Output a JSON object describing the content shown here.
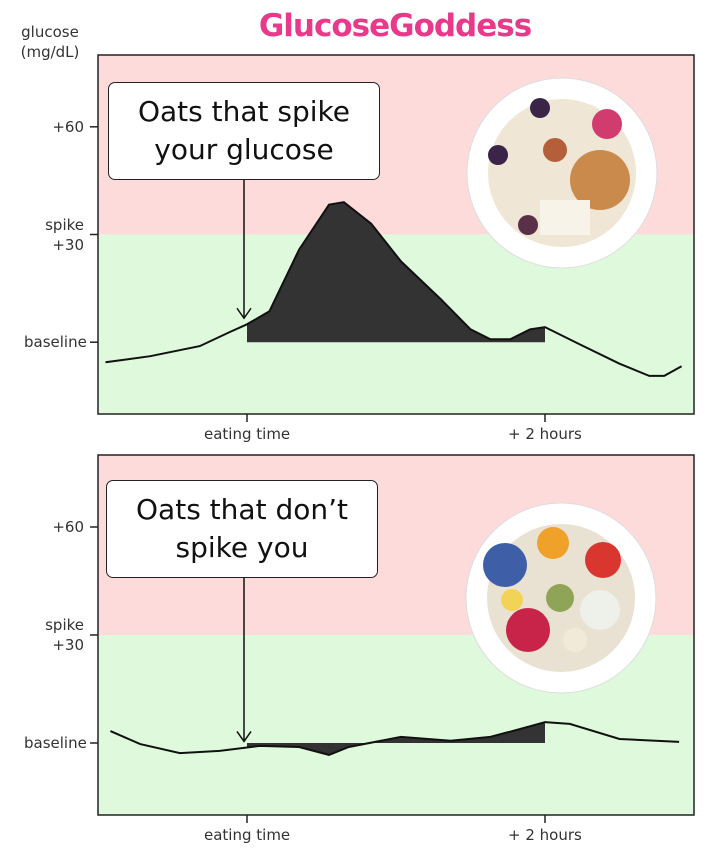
{
  "title": "GlucoseGoddess",
  "chart_data": [
    {
      "type": "line",
      "y_label": "glucose (mg/dL)",
      "annotation": "Oats that spike your glucose",
      "x": [
        -57,
        -39,
        -19,
        -7,
        0,
        9,
        21,
        33,
        39,
        50,
        62,
        78,
        90,
        98,
        106,
        114,
        120,
        134,
        150,
        162,
        168,
        175
      ],
      "values": [
        -5.6,
        -3.9,
        -1.1,
        2.8,
        5,
        8.6,
        25.8,
        38.3,
        39,
        33,
        22.5,
        12,
        3.6,
        0.8,
        0.8,
        3.6,
        4.2,
        -0.6,
        -6,
        -9.4,
        -9.4,
        -6.7
      ],
      "color": "#111111",
      "area_color": "#333333",
      "xlim": [
        -60,
        180
      ],
      "xticks": [
        {
          "value": 0,
          "label": "eating time"
        },
        {
          "value": 120,
          "label": "+ 2 hours"
        }
      ],
      "ylim": [
        -20,
        80
      ],
      "yticks": [
        {
          "value": 0,
          "label": "baseline"
        },
        {
          "value": 30,
          "label": "spike +30"
        },
        {
          "value": 60,
          "label": "+60"
        }
      ]
    },
    {
      "type": "line",
      "annotation": "Oats that don’t spike you",
      "x": [
        -55,
        -43,
        -27,
        -11,
        5,
        21,
        33,
        41,
        62,
        82,
        98,
        110,
        120,
        130,
        150,
        174
      ],
      "values": [
        3.3,
        -0.3,
        -2.8,
        -2.2,
        -0.8,
        -1.1,
        -3.3,
        -1.1,
        1.7,
        0.6,
        1.7,
        3.9,
        5.8,
        5.3,
        1.1,
        0.3
      ],
      "color": "#111111",
      "area_color": "#333333",
      "xlim": [
        -60,
        180
      ],
      "xticks": [
        {
          "value": 0,
          "label": "eating time"
        },
        {
          "value": 120,
          "label": "+ 2 hours"
        }
      ],
      "ylim": [
        -20,
        80
      ],
      "yticks": [
        {
          "value": 0,
          "label": "baseline"
        },
        {
          "value": 30,
          "label": "spike +30"
        },
        {
          "value": 60,
          "label": "+60"
        }
      ]
    }
  ]
}
